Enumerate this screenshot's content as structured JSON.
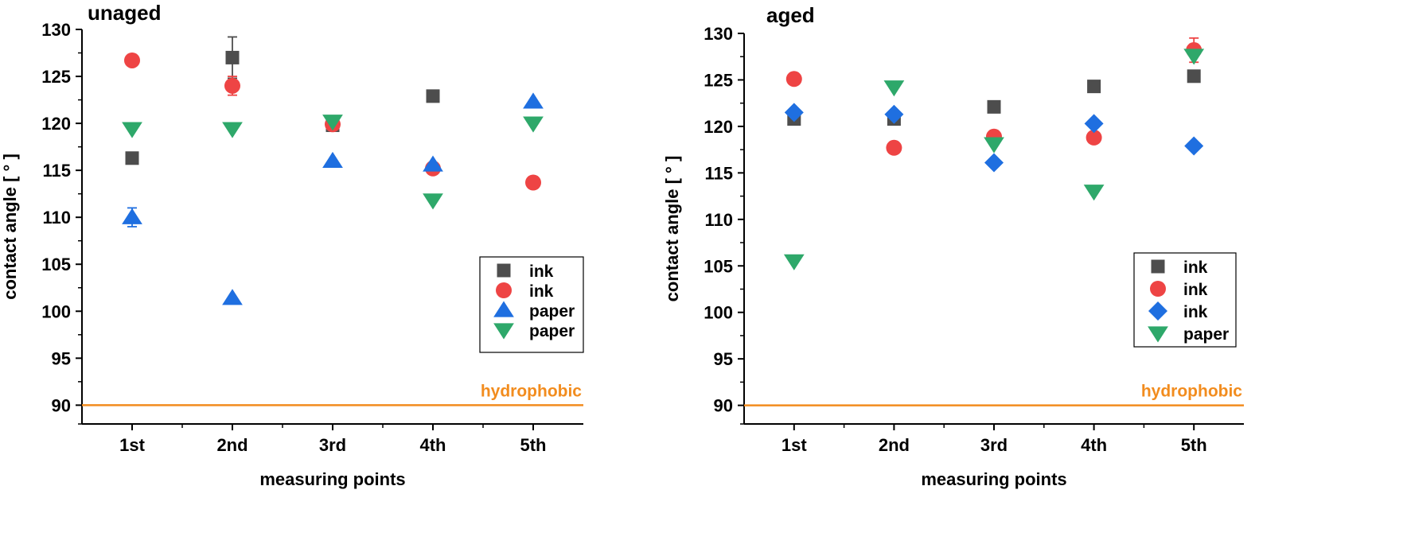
{
  "chart_data": [
    {
      "type": "scatter",
      "title": "unaged",
      "xlabel": "measuring points",
      "ylabel": "contact angle [ ° ]",
      "categories": [
        "1st",
        "2nd",
        "3rd",
        "4th",
        "5th"
      ],
      "ylim": [
        88,
        130
      ],
      "yticks": [
        90,
        95,
        100,
        105,
        110,
        115,
        120,
        125,
        130
      ],
      "reference_line": {
        "value": 90,
        "label": "hydrophobic",
        "color": "#F28C1E"
      },
      "legend_position": "right",
      "series": [
        {
          "name": "ink",
          "marker": "square",
          "color": "#4D4D4D",
          "values": [
            116.3,
            127.0,
            119.8,
            122.9,
            null
          ],
          "errors": [
            null,
            2.2,
            null,
            null,
            null
          ]
        },
        {
          "name": "ink",
          "marker": "circle",
          "color": "#EE4444",
          "values": [
            126.7,
            124.0,
            119.9,
            115.2,
            113.7
          ],
          "errors": [
            null,
            1.0,
            null,
            null,
            null
          ]
        },
        {
          "name": "paper",
          "marker": "triangle-up",
          "color": "#1F6FE0",
          "values": [
            110.0,
            101.4,
            116.0,
            115.6,
            122.3
          ],
          "errors": [
            1.0,
            null,
            null,
            null,
            null
          ]
        },
        {
          "name": "paper",
          "marker": "triangle-down",
          "color": "#2EA86A",
          "values": [
            119.4,
            119.4,
            120.2,
            111.8,
            120.0
          ],
          "errors": [
            null,
            null,
            null,
            null,
            null
          ]
        }
      ]
    },
    {
      "type": "scatter",
      "title": "aged",
      "xlabel": "measuring points",
      "ylabel": "contact angle [ ° ]",
      "categories": [
        "1st",
        "2nd",
        "3rd",
        "4th",
        "5th"
      ],
      "ylim": [
        88,
        130
      ],
      "yticks": [
        90,
        95,
        100,
        105,
        110,
        115,
        120,
        125,
        130
      ],
      "reference_line": {
        "value": 90,
        "label": "hydrophobic",
        "color": "#F28C1E"
      },
      "legend_position": "right",
      "series": [
        {
          "name": "ink",
          "marker": "square",
          "color": "#4D4D4D",
          "values": [
            120.8,
            120.8,
            122.1,
            124.3,
            125.4
          ],
          "errors": [
            null,
            null,
            null,
            null,
            null
          ]
        },
        {
          "name": "ink",
          "marker": "circle",
          "color": "#EE4444",
          "values": [
            125.1,
            117.7,
            118.9,
            118.8,
            128.2
          ],
          "errors": [
            null,
            null,
            null,
            null,
            1.3
          ]
        },
        {
          "name": "ink",
          "marker": "diamond",
          "color": "#1F6FE0",
          "values": [
            121.5,
            121.3,
            116.1,
            120.3,
            117.9
          ],
          "errors": [
            null,
            null,
            null,
            null,
            null
          ]
        },
        {
          "name": "paper",
          "marker": "triangle-down",
          "color": "#2EA86A",
          "values": [
            105.5,
            124.2,
            118.1,
            113.0,
            127.6
          ],
          "errors": [
            null,
            null,
            null,
            null,
            null
          ]
        }
      ]
    }
  ]
}
